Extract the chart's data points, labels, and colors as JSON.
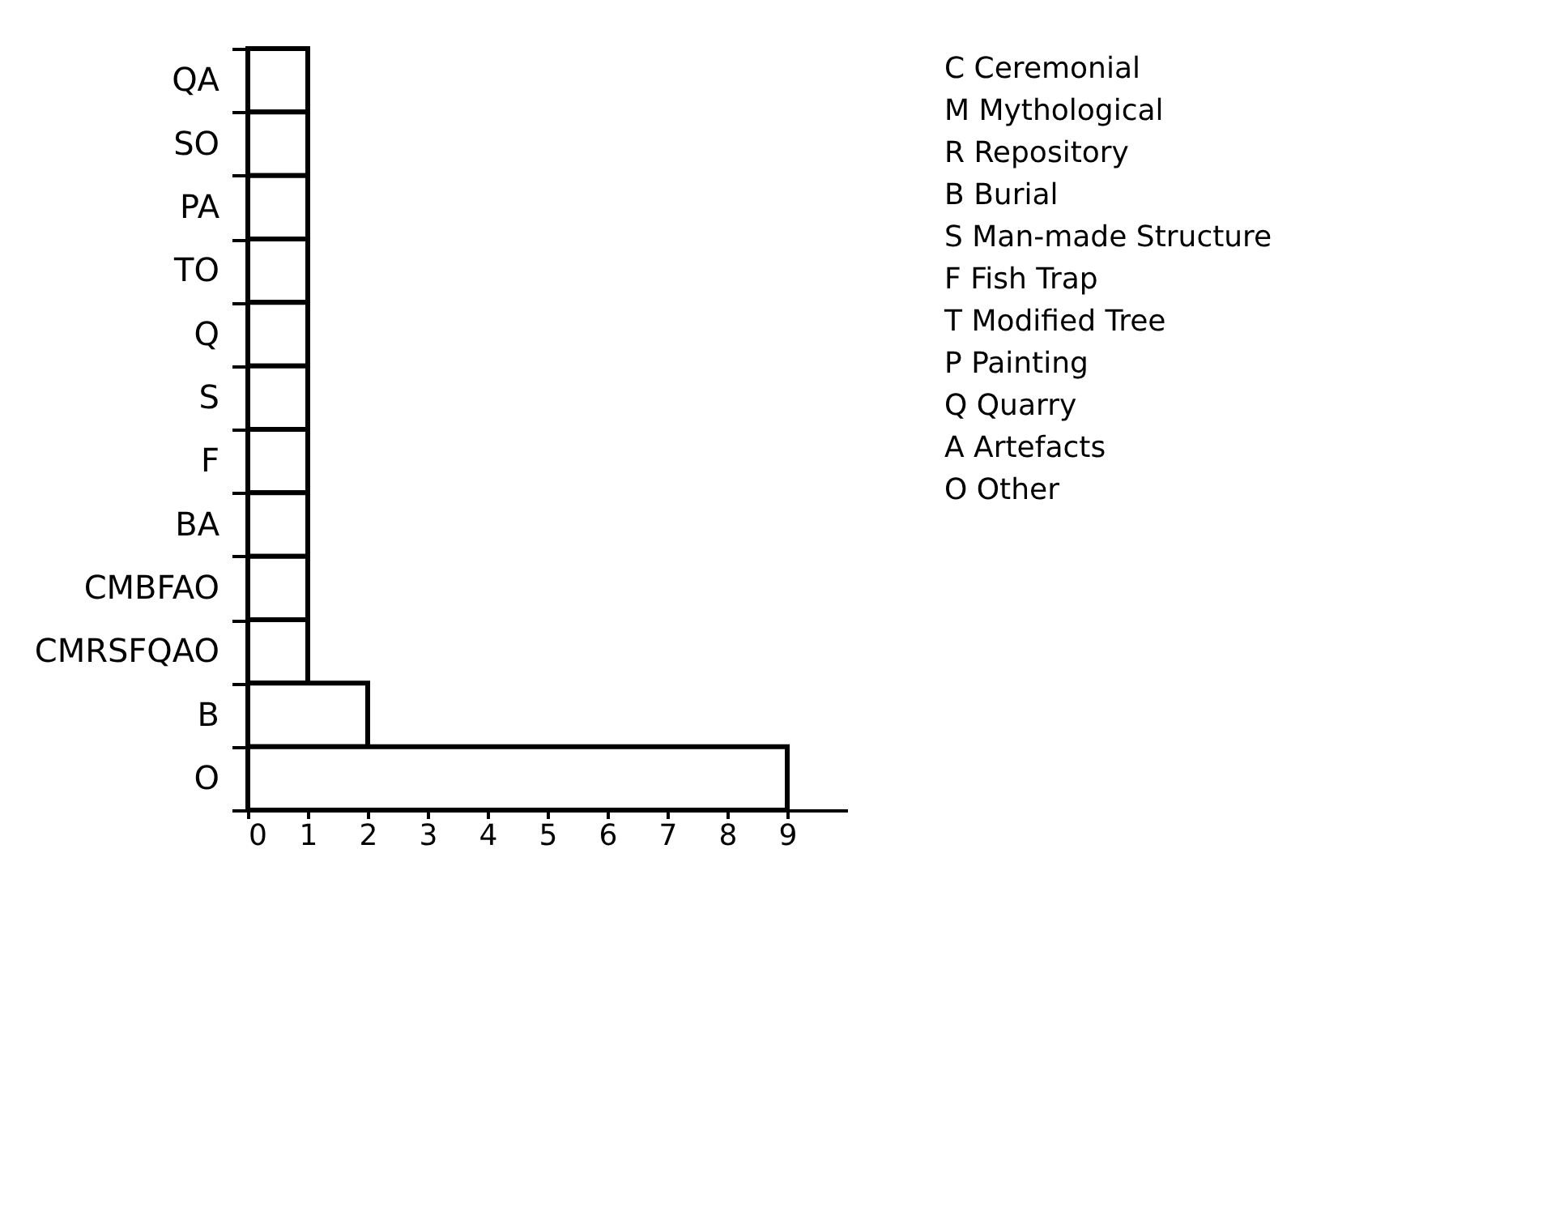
{
  "chart_data": {
    "type": "bar",
    "orientation": "horizontal",
    "categories": [
      "QA",
      "SO",
      "PA",
      "TO",
      "Q",
      "S",
      "F",
      "BA",
      "CMBFAO",
      "CMRSFQAO",
      "B",
      "O"
    ],
    "values": [
      1,
      1,
      1,
      1,
      1,
      1,
      1,
      1,
      1,
      1,
      2,
      9
    ],
    "color": "#ffffff",
    "xlim": [
      0,
      10
    ],
    "xticks": [
      0,
      1,
      2,
      3,
      4,
      5,
      6,
      7,
      8,
      9
    ],
    "annotations": [
      "C   Ceremonial",
      "M   Mythological",
      "R   Repository",
      "B   Burial",
      "S   Man-made Structure",
      "F   Fish Trap",
      "T   Modified Tree",
      "P   Painting",
      "Q   Quarry",
      "A   Artefacts",
      "O   Other"
    ]
  }
}
